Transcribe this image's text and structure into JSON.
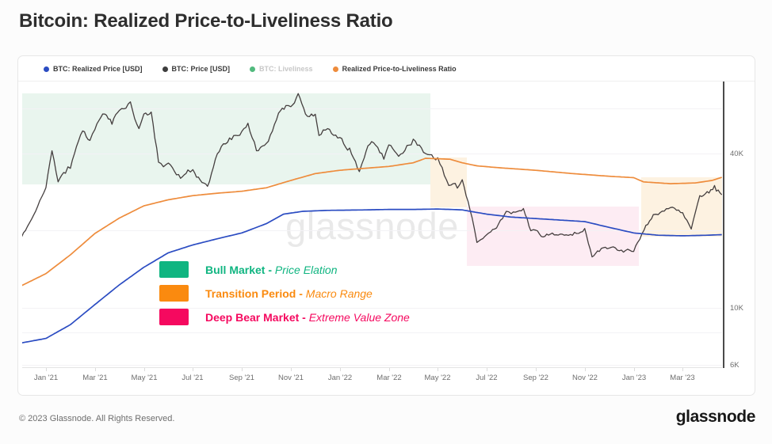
{
  "page": {
    "title": "Bitcoin: Realized Price-to-Liveliness Ratio"
  },
  "watermark": "glassnode",
  "footer": {
    "copyright": "© 2023 Glassnode. All Rights Reserved.",
    "brand": "glassnode"
  },
  "legend": [
    {
      "label": "BTC: Realized Price [USD]",
      "color": "#2b4cc2",
      "disabled": false
    },
    {
      "label": "BTC: Price [USD]",
      "color": "#3d3d3d",
      "disabled": false
    },
    {
      "label": "BTC: Liveliness",
      "color": "#52ba7e",
      "disabled": true
    },
    {
      "label": "Realized Price-to-Liveliness Ratio",
      "color": "#ee8c3c",
      "disabled": false
    }
  ],
  "chart_data": {
    "type": "line",
    "title": "Bitcoin: Realized Price-to-Liveliness Ratio",
    "x_unit": "months since Dec 2020",
    "y_axis": {
      "scale": "log",
      "unit": "USD",
      "ticks": [
        {
          "v": 40,
          "label": "40K"
        },
        {
          "v": 10,
          "label": "10K"
        },
        {
          "v": 6,
          "label": "6K"
        }
      ],
      "gridlines_k": [
        60,
        40,
        20,
        10,
        8,
        6
      ],
      "range_k": [
        5.8,
        75
      ]
    },
    "x_ticks": [
      {
        "t": 1,
        "label": "Jan '21"
      },
      {
        "t": 3,
        "label": "Mar '21"
      },
      {
        "t": 5,
        "label": "May '21"
      },
      {
        "t": 7,
        "label": "Jul '21"
      },
      {
        "t": 9,
        "label": "Sep '21"
      },
      {
        "t": 11,
        "label": "Nov '21"
      },
      {
        "t": 13,
        "label": "Jan '22"
      },
      {
        "t": 15,
        "label": "Mar '22"
      },
      {
        "t": 17,
        "label": "May '22"
      },
      {
        "t": 19,
        "label": "Jul '22"
      },
      {
        "t": 21,
        "label": "Sep '22"
      },
      {
        "t": 23,
        "label": "Nov '22"
      },
      {
        "t": 25,
        "label": "Jan '23"
      },
      {
        "t": 27,
        "label": "Mar '23"
      }
    ],
    "series": [
      {
        "name": "BTC: Price [USD]",
        "color": "#453f3f",
        "width": 1.3,
        "style": "volatile",
        "points": [
          [
            0,
            18.8
          ],
          [
            0.5,
            23
          ],
          [
            1,
            29.4
          ],
          [
            1.25,
            41
          ],
          [
            1.5,
            31
          ],
          [
            1.8,
            33.5
          ],
          [
            2,
            35
          ],
          [
            2.5,
            49
          ],
          [
            2.8,
            45
          ],
          [
            3,
            49.6
          ],
          [
            3.4,
            57
          ],
          [
            3.7,
            52
          ],
          [
            4,
            58.9
          ],
          [
            4.45,
            63.6
          ],
          [
            4.8,
            50
          ],
          [
            5,
            57
          ],
          [
            5.3,
            58
          ],
          [
            5.6,
            37
          ],
          [
            5.8,
            35.5
          ],
          [
            6,
            36.7
          ],
          [
            6.5,
            32
          ],
          [
            6.8,
            34.5
          ],
          [
            7,
            34.6
          ],
          [
            7.3,
            31.5
          ],
          [
            7.6,
            29.8
          ],
          [
            8,
            39.9
          ],
          [
            8.5,
            46
          ],
          [
            9,
            48.8
          ],
          [
            9.25,
            52.5
          ],
          [
            9.6,
            41
          ],
          [
            10,
            43.8
          ],
          [
            10.5,
            57.5
          ],
          [
            10.8,
            61.5
          ],
          [
            11,
            60.9
          ],
          [
            11.3,
            68.5
          ],
          [
            11.6,
            57
          ],
          [
            12,
            56.9
          ],
          [
            12.15,
            47
          ],
          [
            12.5,
            50
          ],
          [
            13,
            46.2
          ],
          [
            13.4,
            42
          ],
          [
            13.8,
            34
          ],
          [
            14,
            38.5
          ],
          [
            14.3,
            44.5
          ],
          [
            14.8,
            38
          ],
          [
            15,
            43.2
          ],
          [
            15.4,
            39
          ],
          [
            16,
            45.5
          ],
          [
            16.5,
            40
          ],
          [
            17,
            38.5
          ],
          [
            17.45,
            30
          ],
          [
            17.8,
            29.3
          ],
          [
            18,
            31.6
          ],
          [
            18.4,
            22.5
          ],
          [
            18.6,
            18
          ],
          [
            19,
            19.3
          ],
          [
            19.4,
            20.5
          ],
          [
            19.8,
            23.8
          ],
          [
            20,
            23.3
          ],
          [
            20.5,
            24.4
          ],
          [
            20.8,
            20
          ],
          [
            21,
            20.1
          ],
          [
            21.3,
            18.9
          ],
          [
            21.6,
            19.4
          ],
          [
            22,
            19.4
          ],
          [
            22.5,
            19.2
          ],
          [
            23,
            20.4
          ],
          [
            23.3,
            15.8
          ],
          [
            23.6,
            16.6
          ],
          [
            24,
            17.1
          ],
          [
            24.5,
            16.8
          ],
          [
            25,
            16.6
          ],
          [
            25.5,
            21
          ],
          [
            25.8,
            23.1
          ],
          [
            26,
            23.1
          ],
          [
            26.5,
            24.6
          ],
          [
            27,
            23.5
          ],
          [
            27.35,
            20.3
          ],
          [
            27.7,
            27.4
          ],
          [
            28,
            28.4
          ],
          [
            28.3,
            30
          ],
          [
            28.6,
            27.6
          ]
        ]
      },
      {
        "name": "BTC: Realized Price [USD]",
        "color": "#2b4cc2",
        "width": 1.7,
        "style": "smooth",
        "points": [
          [
            0,
            7.3
          ],
          [
            1,
            7.6
          ],
          [
            2,
            8.6
          ],
          [
            3,
            10.3
          ],
          [
            4,
            12.3
          ],
          [
            5,
            14.4
          ],
          [
            6,
            16.4
          ],
          [
            7,
            17.6
          ],
          [
            8,
            18.6
          ],
          [
            9,
            19.6
          ],
          [
            10,
            21.3
          ],
          [
            10.7,
            23.2
          ],
          [
            11.5,
            23.8
          ],
          [
            12.5,
            24.0
          ],
          [
            14,
            24.1
          ],
          [
            15,
            24.2
          ],
          [
            16,
            24.2
          ],
          [
            17,
            24.3
          ],
          [
            18,
            24.1
          ],
          [
            19,
            23.2
          ],
          [
            20,
            22.6
          ],
          [
            21,
            22.3
          ],
          [
            22,
            22.0
          ],
          [
            23,
            21.7
          ],
          [
            24,
            20.6
          ],
          [
            25,
            19.6
          ],
          [
            26,
            19.2
          ],
          [
            27,
            19.1
          ],
          [
            28,
            19.2
          ],
          [
            28.6,
            19.3
          ]
        ]
      },
      {
        "name": "Realized Price-to-Liveliness Ratio",
        "color": "#ee8c3c",
        "width": 1.7,
        "style": "smooth",
        "points": [
          [
            0,
            12.2
          ],
          [
            1,
            13.6
          ],
          [
            2,
            16.1
          ],
          [
            3,
            19.5
          ],
          [
            4,
            22.4
          ],
          [
            5,
            25.0
          ],
          [
            6,
            26.4
          ],
          [
            7,
            27.4
          ],
          [
            8,
            28.0
          ],
          [
            9,
            28.5
          ],
          [
            10,
            29.4
          ],
          [
            11,
            31.4
          ],
          [
            12,
            33.4
          ],
          [
            13,
            34.4
          ],
          [
            14,
            35.0
          ],
          [
            15,
            35.6
          ],
          [
            16,
            36.8
          ],
          [
            16.5,
            38.3
          ],
          [
            17.5,
            38.0
          ],
          [
            18.0,
            36.8
          ],
          [
            18.6,
            35.8
          ],
          [
            19.5,
            35.2
          ],
          [
            21,
            34.4
          ],
          [
            22.5,
            33.4
          ],
          [
            24,
            32.6
          ],
          [
            25,
            32.2
          ],
          [
            25.4,
            31.0
          ],
          [
            26.5,
            30.5
          ],
          [
            27.5,
            30.7
          ],
          [
            28.2,
            31.4
          ],
          [
            28.6,
            32.3
          ]
        ]
      }
    ],
    "zones": [
      {
        "label": "Bull Market",
        "desc": "Price Elation",
        "bg": "#e9f5ee",
        "t": [
          0,
          16.7
        ],
        "v": [
          30.3,
          68.6
        ]
      },
      {
        "label": "Transition Period",
        "desc": "Macro Range",
        "bg": "#fdf2e1",
        "t": [
          16.7,
          18.2
        ],
        "v": [
          24.7,
          38.6
        ]
      },
      {
        "label": "Deep Bear Market",
        "desc": "Extreme Value Zone",
        "bg": "#fdecf3",
        "t": [
          18.2,
          25.2
        ],
        "v": [
          14.6,
          24.8
        ]
      },
      {
        "label": "Transition Period",
        "desc": "Macro Range",
        "bg": "#fdf2e1",
        "t": [
          25.3,
          28.6
        ],
        "v": [
          19.0,
          32.3
        ]
      }
    ],
    "zone_legend": [
      {
        "label": "Bull Market",
        "desc": "Price Elation",
        "color": "#10b581"
      },
      {
        "label": "Transition Period",
        "desc": "Macro Range",
        "color": "#fa8a0f"
      },
      {
        "label": "Deep Bear Market",
        "desc": "Extreme Value Zone",
        "color": "#f5095f"
      }
    ],
    "legend_position": "top-left",
    "grid": "faint-horizontal"
  }
}
